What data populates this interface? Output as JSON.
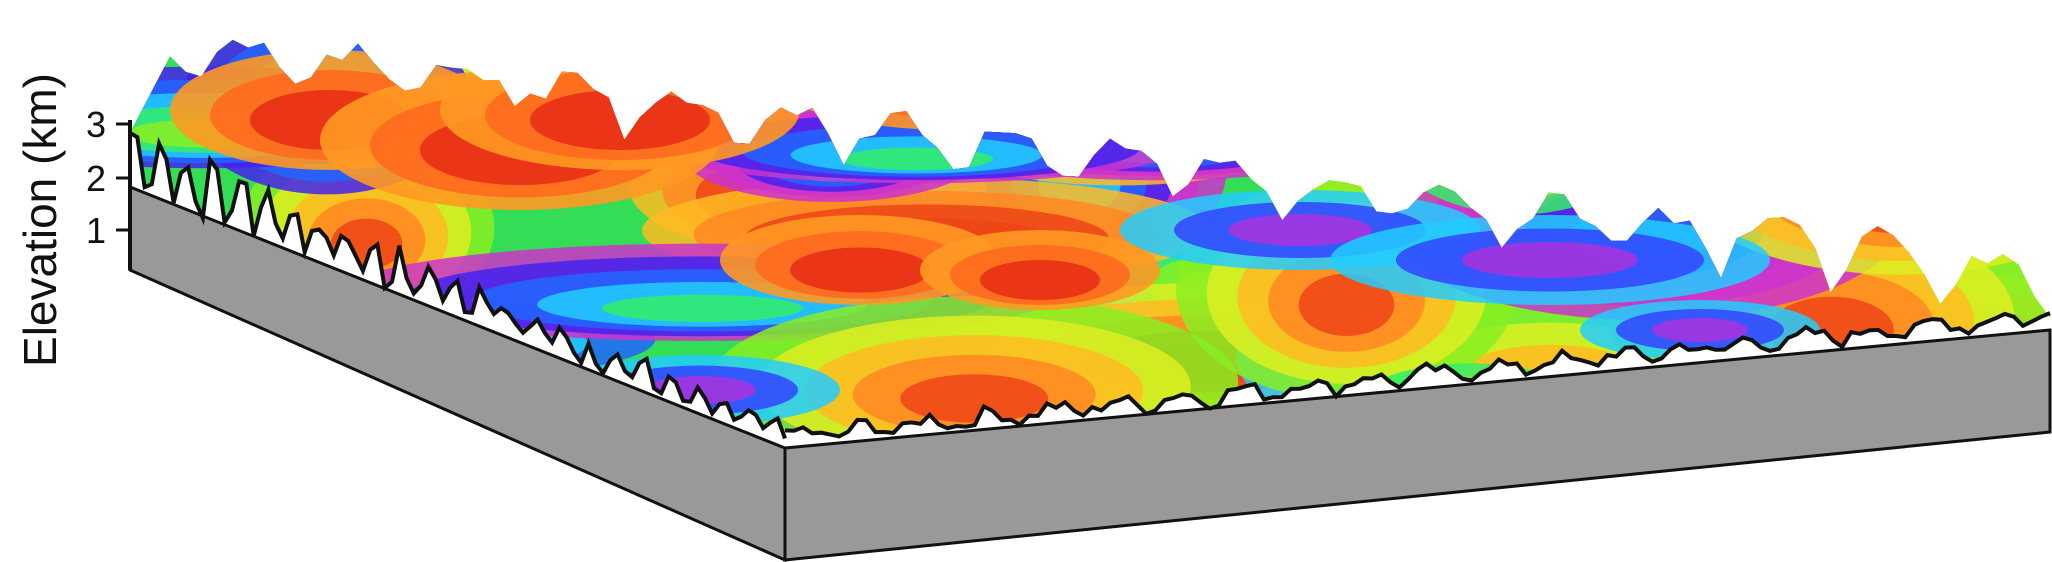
{
  "figure": {
    "kind": "3d-terrain-perspective",
    "colormap": "rainbow",
    "side_color": "#999999",
    "outline_color": "#111111"
  },
  "axis": {
    "title": "Elevation (km)",
    "ticks": [
      "1",
      "2",
      "3"
    ],
    "range_km": [
      0,
      3
    ]
  }
}
